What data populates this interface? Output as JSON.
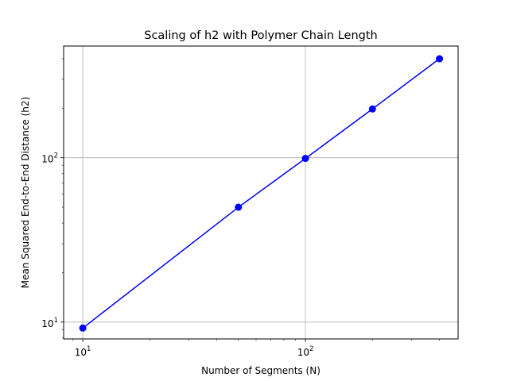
{
  "chart_data": {
    "type": "line",
    "title": "Scaling of h2 with Polymer Chain Length",
    "xlabel": "Number of Segments (N)",
    "ylabel": "Mean Squared End-to-End Distance (h2)",
    "xscale": "log",
    "yscale": "log",
    "xlim": [
      8.2,
      485
    ],
    "ylim": [
      7.9,
      478
    ],
    "grid": true,
    "x_major_ticks": [
      {
        "value": 10,
        "base": "10",
        "exp": "1"
      },
      {
        "value": 100,
        "base": "10",
        "exp": "2"
      }
    ],
    "y_major_ticks": [
      {
        "value": 10,
        "base": "10",
        "exp": "1"
      },
      {
        "value": 100,
        "base": "10",
        "exp": "2"
      }
    ],
    "series": [
      {
        "x": [
          10,
          50,
          100,
          200,
          400
        ],
        "y": [
          9.2,
          50,
          99,
          198,
          400
        ],
        "color": "#0000ff",
        "marker": "circle"
      }
    ]
  }
}
